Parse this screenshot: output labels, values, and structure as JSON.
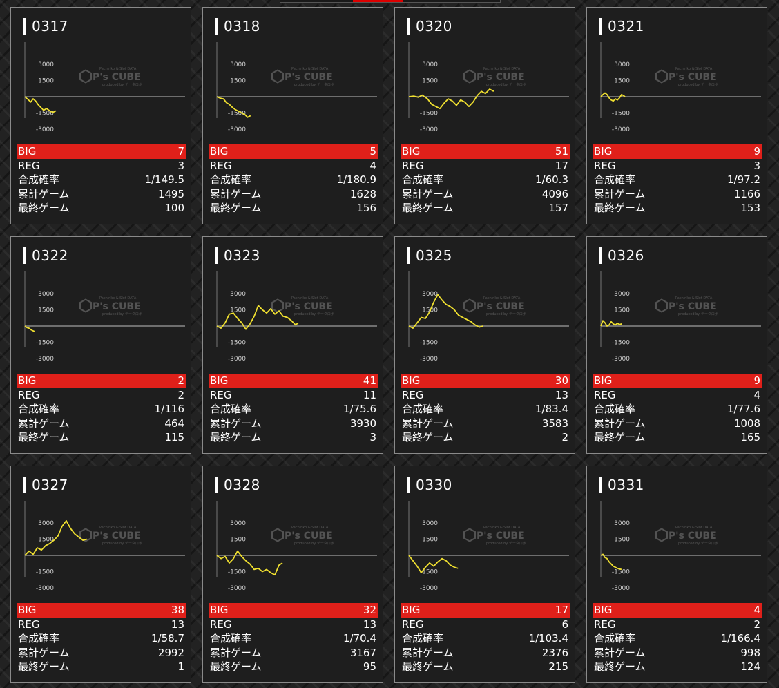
{
  "labels": {
    "big": "BIG",
    "reg": "REG",
    "rate": "合成確率",
    "total": "累計ゲーム",
    "last": "最終ゲーム"
  },
  "axis_ticks": [
    "3000",
    "1500",
    "-1500",
    "-3000"
  ],
  "watermark": {
    "small": "Pachinko & Slot DATA",
    "brand": "P's CUBE",
    "sub": "produced by データロボ"
  },
  "colors": {
    "line": "#f0e030",
    "big_row": "#e0201a",
    "zero_line": "#888888"
  },
  "machines": [
    {
      "id": "0317",
      "big": "7",
      "reg": "3",
      "rate": "1/149.5",
      "total": "1495",
      "last": "100",
      "graph": [
        [
          0,
          0
        ],
        [
          150,
          -250
        ],
        [
          280,
          -500
        ],
        [
          400,
          -200
        ],
        [
          520,
          -400
        ],
        [
          650,
          -750
        ],
        [
          780,
          -1000
        ],
        [
          900,
          -1250
        ],
        [
          1050,
          -1100
        ],
        [
          1200,
          -1300
        ],
        [
          1350,
          -1450
        ],
        [
          1495,
          -1300
        ]
      ]
    },
    {
      "id": "0318",
      "big": "5",
      "reg": "4",
      "rate": "1/180.9",
      "total": "1628",
      "last": "156",
      "graph": [
        [
          0,
          0
        ],
        [
          180,
          -150
        ],
        [
          320,
          -200
        ],
        [
          460,
          -550
        ],
        [
          600,
          -700
        ],
        [
          760,
          -1000
        ],
        [
          900,
          -1200
        ],
        [
          1060,
          -1350
        ],
        [
          1200,
          -1500
        ],
        [
          1350,
          -1650
        ],
        [
          1480,
          -1900
        ],
        [
          1628,
          -1750
        ]
      ]
    },
    {
      "id": "0320",
      "big": "51",
      "reg": "17",
      "rate": "1/60.3",
      "total": "4096",
      "last": "157",
      "graph": [
        [
          0,
          0
        ],
        [
          250,
          50
        ],
        [
          450,
          -50
        ],
        [
          650,
          150
        ],
        [
          900,
          -200
        ],
        [
          1100,
          -700
        ],
        [
          1300,
          -900
        ],
        [
          1500,
          -1100
        ],
        [
          1700,
          -600
        ],
        [
          1900,
          -200
        ],
        [
          2100,
          -400
        ],
        [
          2300,
          -800
        ],
        [
          2500,
          -300
        ],
        [
          2700,
          -500
        ],
        [
          2900,
          -900
        ],
        [
          3100,
          -500
        ],
        [
          3300,
          100
        ],
        [
          3500,
          500
        ],
        [
          3700,
          300
        ],
        [
          3900,
          700
        ],
        [
          4096,
          500
        ]
      ]
    },
    {
      "id": "0321",
      "big": "9",
      "reg": "3",
      "rate": "1/97.2",
      "total": "1166",
      "last": "153",
      "graph": [
        [
          0,
          0
        ],
        [
          100,
          200
        ],
        [
          200,
          350
        ],
        [
          300,
          200
        ],
        [
          400,
          -100
        ],
        [
          500,
          -300
        ],
        [
          600,
          -400
        ],
        [
          700,
          -200
        ],
        [
          800,
          -300
        ],
        [
          900,
          -100
        ],
        [
          1000,
          200
        ],
        [
          1100,
          100
        ],
        [
          1166,
          0
        ]
      ]
    },
    {
      "id": "0322",
      "big": "2",
      "reg": "2",
      "rate": "1/116",
      "total": "464",
      "last": "115",
      "graph": [
        [
          0,
          0
        ],
        [
          100,
          -150
        ],
        [
          200,
          -200
        ],
        [
          300,
          -350
        ],
        [
          400,
          -450
        ],
        [
          464,
          -500
        ]
      ]
    },
    {
      "id": "0323",
      "big": "41",
      "reg": "11",
      "rate": "1/75.6",
      "total": "3930",
      "last": "3",
      "graph": [
        [
          0,
          0
        ],
        [
          200,
          -200
        ],
        [
          400,
          300
        ],
        [
          600,
          1100
        ],
        [
          800,
          1200
        ],
        [
          1000,
          700
        ],
        [
          1200,
          300
        ],
        [
          1400,
          -300
        ],
        [
          1600,
          200
        ],
        [
          1800,
          900
        ],
        [
          2000,
          1900
        ],
        [
          2200,
          1500
        ],
        [
          2400,
          1200
        ],
        [
          2600,
          1600
        ],
        [
          2800,
          1100
        ],
        [
          3000,
          1400
        ],
        [
          3200,
          900
        ],
        [
          3400,
          800
        ],
        [
          3600,
          500
        ],
        [
          3800,
          100
        ],
        [
          3930,
          300
        ]
      ]
    },
    {
      "id": "0325",
      "big": "30",
      "reg": "13",
      "rate": "1/83.4",
      "total": "3583",
      "last": "2",
      "graph": [
        [
          0,
          0
        ],
        [
          200,
          -200
        ],
        [
          400,
          300
        ],
        [
          600,
          800
        ],
        [
          800,
          700
        ],
        [
          1000,
          1300
        ],
        [
          1200,
          2200
        ],
        [
          1400,
          2900
        ],
        [
          1600,
          2400
        ],
        [
          1800,
          2000
        ],
        [
          2000,
          1800
        ],
        [
          2200,
          1500
        ],
        [
          2400,
          1000
        ],
        [
          2600,
          800
        ],
        [
          2800,
          600
        ],
        [
          3000,
          400
        ],
        [
          3200,
          100
        ],
        [
          3400,
          -100
        ],
        [
          3583,
          0
        ]
      ]
    },
    {
      "id": "0326",
      "big": "9",
      "reg": "4",
      "rate": "1/77.6",
      "total": "1008",
      "last": "165",
      "graph": [
        [
          0,
          0
        ],
        [
          100,
          500
        ],
        [
          200,
          300
        ],
        [
          300,
          0
        ],
        [
          400,
          100
        ],
        [
          500,
          400
        ],
        [
          600,
          200
        ],
        [
          700,
          100
        ],
        [
          800,
          250
        ],
        [
          900,
          150
        ],
        [
          1008,
          200
        ]
      ]
    },
    {
      "id": "0327",
      "big": "38",
      "reg": "13",
      "rate": "1/58.7",
      "total": "2992",
      "last": "1",
      "graph": [
        [
          0,
          0
        ],
        [
          200,
          400
        ],
        [
          400,
          100
        ],
        [
          600,
          700
        ],
        [
          800,
          500
        ],
        [
          1000,
          900
        ],
        [
          1200,
          1100
        ],
        [
          1400,
          1400
        ],
        [
          1600,
          1800
        ],
        [
          1800,
          2700
        ],
        [
          2000,
          3200
        ],
        [
          2200,
          2500
        ],
        [
          2400,
          2000
        ],
        [
          2600,
          1700
        ],
        [
          2800,
          1400
        ],
        [
          2992,
          1500
        ]
      ]
    },
    {
      "id": "0328",
      "big": "32",
      "reg": "13",
      "rate": "1/70.4",
      "total": "3167",
      "last": "95",
      "graph": [
        [
          0,
          0
        ],
        [
          200,
          -300
        ],
        [
          400,
          -100
        ],
        [
          600,
          -700
        ],
        [
          800,
          -300
        ],
        [
          1000,
          400
        ],
        [
          1200,
          -100
        ],
        [
          1400,
          -500
        ],
        [
          1600,
          -800
        ],
        [
          1800,
          -1300
        ],
        [
          2000,
          -1200
        ],
        [
          2200,
          -1500
        ],
        [
          2400,
          -1300
        ],
        [
          2600,
          -1600
        ],
        [
          2800,
          -1800
        ],
        [
          3000,
          -900
        ],
        [
          3167,
          -700
        ]
      ]
    },
    {
      "id": "0330",
      "big": "17",
      "reg": "6",
      "rate": "1/103.4",
      "total": "2376",
      "last": "215",
      "graph": [
        [
          0,
          0
        ],
        [
          200,
          -500
        ],
        [
          400,
          -1000
        ],
        [
          600,
          -1600
        ],
        [
          800,
          -1100
        ],
        [
          1000,
          -700
        ],
        [
          1200,
          -1000
        ],
        [
          1400,
          -600
        ],
        [
          1600,
          -300
        ],
        [
          1800,
          -500
        ],
        [
          2000,
          -900
        ],
        [
          2200,
          -1100
        ],
        [
          2376,
          -1200
        ]
      ]
    },
    {
      "id": "0331",
      "big": "4",
      "reg": "2",
      "rate": "1/166.4",
      "total": "998",
      "last": "124",
      "graph": [
        [
          0,
          0
        ],
        [
          100,
          100
        ],
        [
          200,
          -200
        ],
        [
          300,
          -300
        ],
        [
          400,
          -600
        ],
        [
          500,
          -800
        ],
        [
          600,
          -1000
        ],
        [
          700,
          -1100
        ],
        [
          800,
          -1200
        ],
        [
          900,
          -1250
        ],
        [
          998,
          -1300
        ]
      ]
    }
  ]
}
